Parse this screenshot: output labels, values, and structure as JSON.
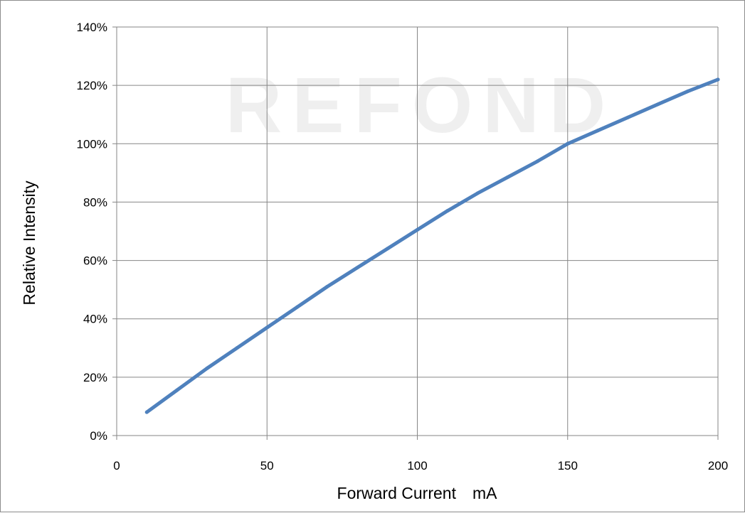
{
  "chart_data": {
    "type": "line",
    "title": "",
    "xlabel": "Forward Current　mA",
    "ylabel": "Relative Intensity",
    "xlim": [
      0,
      200
    ],
    "ylim": [
      0,
      140
    ],
    "x_ticks": [
      0,
      50,
      100,
      150,
      200
    ],
    "y_ticks": [
      0,
      20,
      40,
      60,
      80,
      100,
      120,
      140
    ],
    "x_tick_labels": [
      "0",
      "50",
      "100",
      "150",
      "200"
    ],
    "y_tick_labels": [
      "0%",
      "20%",
      "40%",
      "60%",
      "80%",
      "100%",
      "120%",
      "140%"
    ],
    "grid": true,
    "legend": "none",
    "series": [
      {
        "x": [
          10,
          20,
          30,
          40,
          50,
          60,
          70,
          80,
          90,
          100,
          110,
          120,
          130,
          140,
          150,
          160,
          170,
          180,
          190,
          200
        ],
        "y": [
          8,
          15.5,
          23,
          30,
          37,
          44,
          51,
          57.5,
          64,
          70.5,
          77,
          83,
          88.5,
          94,
          100,
          104.5,
          109,
          113.5,
          118,
          122
        ],
        "color": "#4f81bd"
      }
    ],
    "watermark": "REFOND"
  }
}
